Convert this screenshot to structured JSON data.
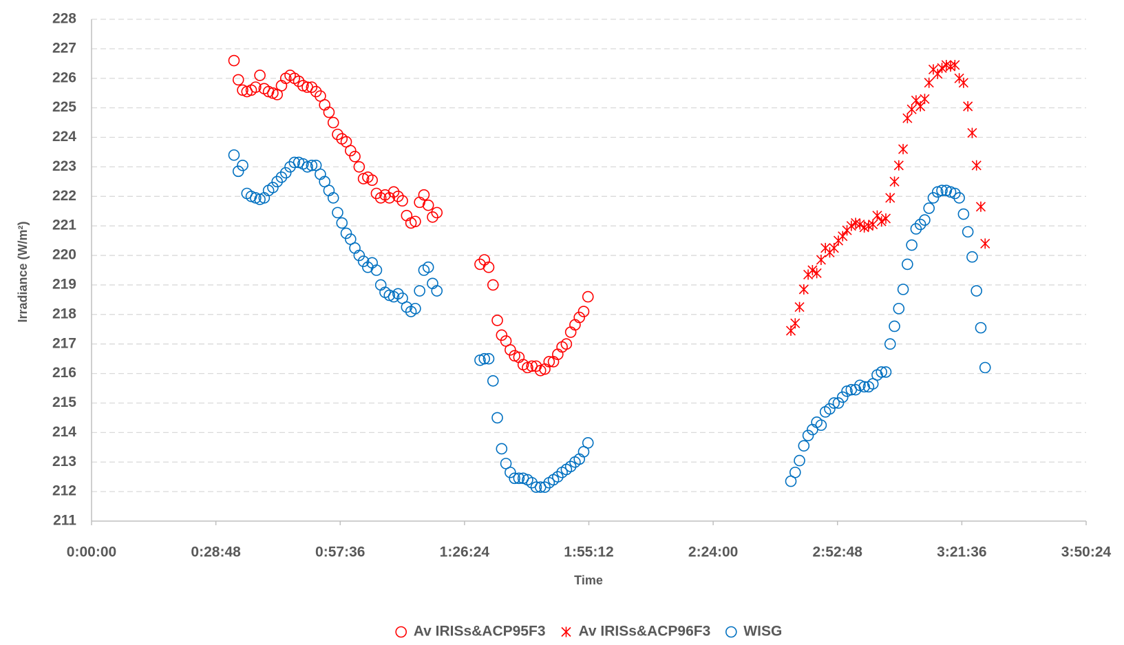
{
  "chart_data": {
    "type": "scatter",
    "x_label": "Time",
    "y_label": "Irradiance (W/m²)",
    "xlim": [
      0,
      13824
    ],
    "xticks": [
      {
        "value": 0,
        "label": "0:00:00"
      },
      {
        "value": 1728,
        "label": "0:28:48"
      },
      {
        "value": 3456,
        "label": "0:57:36"
      },
      {
        "value": 5184,
        "label": "1:26:24"
      },
      {
        "value": 6912,
        "label": "1:55:12"
      },
      {
        "value": 8640,
        "label": "2:24:00"
      },
      {
        "value": 10368,
        "label": "2:52:48"
      },
      {
        "value": 12096,
        "label": "3:21:36"
      },
      {
        "value": 13824,
        "label": "3:50:24"
      }
    ],
    "ylim": [
      211,
      228
    ],
    "yticks": [
      211,
      212,
      213,
      214,
      215,
      216,
      217,
      218,
      219,
      220,
      221,
      222,
      223,
      224,
      225,
      226,
      227,
      228
    ],
    "grid": true,
    "legend": "bottom",
    "series": [
      {
        "name": "Av IRISs&ACP95F3",
        "color": "#ff0000",
        "marker": "circle",
        "x": [
          1980,
          2040,
          2100,
          2160,
          2220,
          2280,
          2340,
          2400,
          2460,
          2520,
          2580,
          2640,
          2700,
          2760,
          2820,
          2880,
          2940,
          3000,
          3060,
          3120,
          3180,
          3240,
          3300,
          3360,
          3420,
          3480,
          3540,
          3600,
          3660,
          3720,
          3780,
          3840,
          3900,
          3960,
          4020,
          4080,
          4140,
          4200,
          4260,
          4320,
          4380,
          4440,
          4500,
          4560,
          4620,
          4680,
          4740,
          4800,
          5400,
          5460,
          5520,
          5580,
          5640,
          5700,
          5760,
          5820,
          5880,
          5940,
          6000,
          6060,
          6120,
          6180,
          6240,
          6300,
          6360,
          6420,
          6480,
          6540,
          6600,
          6660,
          6720,
          6780,
          6840,
          6900
        ],
        "values": [
          226.6,
          225.95,
          225.6,
          225.55,
          225.6,
          225.7,
          226.1,
          225.65,
          225.55,
          225.5,
          225.45,
          225.75,
          226.0,
          226.1,
          226.0,
          225.9,
          225.75,
          225.7,
          225.7,
          225.55,
          225.4,
          225.1,
          224.85,
          224.5,
          224.1,
          223.95,
          223.85,
          223.55,
          223.35,
          223.0,
          222.6,
          222.65,
          222.55,
          222.1,
          221.95,
          222.05,
          221.95,
          222.15,
          222.0,
          221.85,
          221.35,
          221.1,
          221.15,
          221.8,
          222.05,
          221.7,
          221.3,
          221.45,
          219.7,
          219.85,
          219.6,
          219.0,
          217.8,
          217.3,
          217.1,
          216.8,
          216.6,
          216.55,
          216.3,
          216.2,
          216.25,
          216.25,
          216.1,
          216.15,
          216.4,
          216.4,
          216.65,
          216.9,
          217.0,
          217.4,
          217.65,
          217.9,
          218.1,
          218.6
        ]
      },
      {
        "name": "Av IRISs&ACP96F3",
        "color": "#ff0000",
        "marker": "asterisk",
        "x": [
          9720,
          9780,
          9840,
          9900,
          9960,
          10020,
          10080,
          10140,
          10200,
          10260,
          10320,
          10380,
          10440,
          10500,
          10560,
          10620,
          10680,
          10740,
          10800,
          10860,
          10920,
          10980,
          11040,
          11100,
          11160,
          11220,
          11280,
          11340,
          11400,
          11460,
          11520,
          11580,
          11640,
          11700,
          11760,
          11820,
          11880,
          11940,
          12000,
          12060,
          12120,
          12180,
          12240,
          12300,
          12360,
          12420
        ],
        "values": [
          217.45,
          217.7,
          218.25,
          218.85,
          219.35,
          219.5,
          219.4,
          219.85,
          220.25,
          220.1,
          220.25,
          220.5,
          220.65,
          220.85,
          221.0,
          221.1,
          221.05,
          220.95,
          221.0,
          221.05,
          221.35,
          221.15,
          221.25,
          221.95,
          222.5,
          223.05,
          223.6,
          224.65,
          224.95,
          225.25,
          225.05,
          225.3,
          225.85,
          226.3,
          226.15,
          226.35,
          226.45,
          226.4,
          226.45,
          226.0,
          225.85,
          225.05,
          224.15,
          223.05,
          221.65,
          220.4
        ]
      },
      {
        "name": "WISG",
        "color": "#0070c0",
        "marker": "circle",
        "x": [
          1980,
          2040,
          2100,
          2160,
          2220,
          2280,
          2340,
          2400,
          2460,
          2520,
          2580,
          2640,
          2700,
          2760,
          2820,
          2880,
          2940,
          3000,
          3060,
          3120,
          3180,
          3240,
          3300,
          3360,
          3420,
          3480,
          3540,
          3600,
          3660,
          3720,
          3780,
          3840,
          3900,
          3960,
          4020,
          4080,
          4140,
          4200,
          4260,
          4320,
          4380,
          4440,
          4500,
          4560,
          4620,
          4680,
          4740,
          4800,
          5400,
          5460,
          5520,
          5580,
          5640,
          5700,
          5760,
          5820,
          5880,
          5940,
          6000,
          6060,
          6120,
          6180,
          6240,
          6300,
          6360,
          6420,
          6480,
          6540,
          6600,
          6660,
          6720,
          6780,
          6840,
          6900,
          9720,
          9780,
          9840,
          9900,
          9960,
          10020,
          10080,
          10140,
          10200,
          10260,
          10320,
          10380,
          10440,
          10500,
          10560,
          10620,
          10680,
          10740,
          10800,
          10860,
          10920,
          10980,
          11040,
          11100,
          11160,
          11220,
          11280,
          11340,
          11400,
          11460,
          11520,
          11580,
          11640,
          11700,
          11760,
          11820,
          11880,
          11940,
          12000,
          12060,
          12120,
          12180,
          12240,
          12300,
          12360,
          12420
        ],
        "values": [
          223.4,
          222.85,
          223.05,
          222.1,
          222.0,
          221.95,
          221.9,
          221.95,
          222.2,
          222.3,
          222.5,
          222.65,
          222.8,
          223.0,
          223.15,
          223.15,
          223.1,
          223.0,
          223.05,
          223.05,
          222.75,
          222.5,
          222.2,
          221.95,
          221.45,
          221.1,
          220.75,
          220.55,
          220.25,
          220.0,
          219.8,
          219.6,
          219.75,
          219.5,
          219.0,
          218.75,
          218.65,
          218.6,
          218.7,
          218.55,
          218.25,
          218.1,
          218.2,
          218.8,
          219.5,
          219.6,
          219.05,
          218.8,
          216.45,
          216.5,
          216.5,
          215.75,
          214.5,
          213.45,
          212.95,
          212.65,
          212.45,
          212.45,
          212.45,
          212.4,
          212.3,
          212.15,
          212.15,
          212.15,
          212.3,
          212.4,
          212.5,
          212.65,
          212.75,
          212.85,
          213.0,
          213.1,
          213.35,
          213.65,
          212.35,
          212.65,
          213.05,
          213.55,
          213.9,
          214.1,
          214.35,
          214.25,
          214.7,
          214.8,
          215.0,
          215.0,
          215.2,
          215.4,
          215.45,
          215.45,
          215.6,
          215.55,
          215.55,
          215.65,
          215.95,
          216.05,
          216.05,
          217.0,
          217.6,
          218.2,
          218.85,
          219.7,
          220.35,
          220.9,
          221.05,
          221.2,
          221.6,
          221.95,
          222.15,
          222.2,
          222.2,
          222.15,
          222.1,
          221.95,
          221.4,
          220.8,
          219.95,
          218.8,
          217.55,
          216.2
        ]
      }
    ]
  }
}
